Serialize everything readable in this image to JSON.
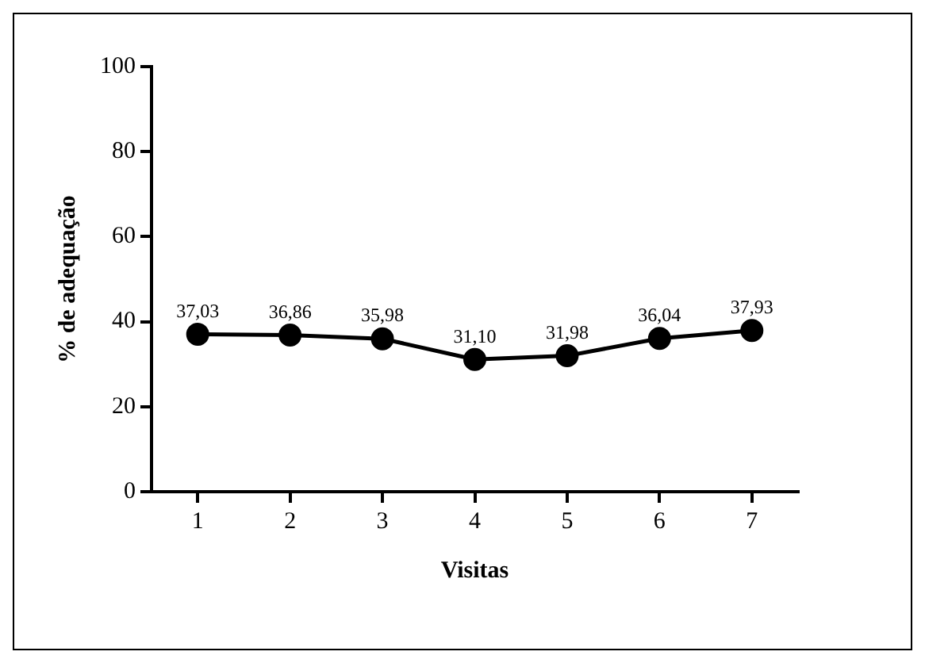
{
  "chart_data": {
    "type": "line",
    "xlabel": "Visitas",
    "ylabel": "% de adequação",
    "categories": [
      "1",
      "2",
      "3",
      "4",
      "5",
      "6",
      "7"
    ],
    "series": [
      {
        "color": "#000000",
        "values": [
          37.03,
          36.86,
          35.98,
          31.1,
          31.98,
          36.04,
          37.93
        ],
        "value_labels": [
          "37,03",
          "36,86",
          "35,98",
          "31,10",
          "31,98",
          "36,04",
          "37,93"
        ]
      }
    ],
    "ylim": [
      0,
      100
    ],
    "yticks": [
      0,
      20,
      40,
      60,
      80,
      100
    ],
    "grid": false,
    "legend": false,
    "marker": "circle",
    "line_style": "solid"
  }
}
